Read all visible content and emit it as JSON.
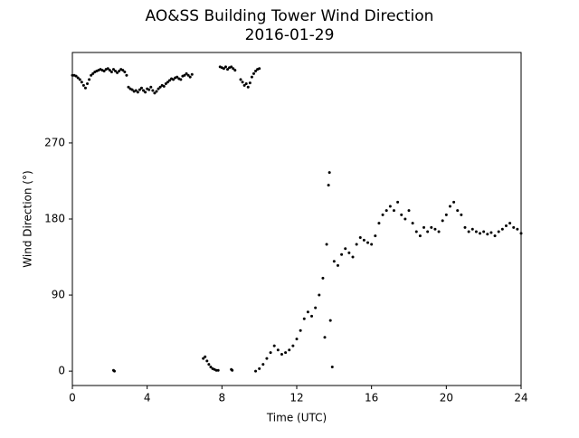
{
  "chart_data": {
    "type": "scatter",
    "title": "AO&SS Building Tower Wind Direction",
    "subtitle": "2016-01-29",
    "x_label": "Time (UTC)",
    "y_label": "Wind Direction (°)",
    "color": "#000000",
    "xlim": [
      0,
      24
    ],
    "ylim": [
      -17,
      377
    ],
    "xticks": [
      0,
      4,
      8,
      12,
      16,
      20,
      24
    ],
    "yticks": [
      0,
      90,
      180,
      270
    ],
    "x": [
      0.0,
      0.1,
      0.2,
      0.3,
      0.4,
      0.5,
      0.6,
      0.7,
      0.8,
      0.9,
      1.0,
      1.1,
      1.2,
      1.3,
      1.4,
      1.5,
      1.6,
      1.7,
      1.8,
      1.9,
      2.0,
      2.1,
      2.2,
      2.3,
      2.4,
      2.5,
      2.6,
      2.7,
      2.8,
      2.9,
      3.0,
      3.1,
      3.2,
      3.3,
      3.4,
      3.5,
      3.6,
      3.7,
      3.8,
      3.9,
      4.0,
      4.1,
      4.2,
      4.3,
      4.4,
      4.5,
      4.6,
      4.7,
      4.8,
      4.9,
      5.0,
      5.1,
      5.2,
      5.3,
      5.4,
      5.5,
      5.6,
      5.7,
      5.8,
      5.9,
      6.0,
      6.1,
      6.2,
      6.3,
      6.4,
      2.2,
      2.25,
      7.0,
      7.1,
      7.2,
      7.3,
      7.4,
      7.5,
      7.6,
      7.7,
      7.8,
      7.9,
      8.0,
      8.1,
      8.2,
      8.3,
      8.4,
      8.5,
      8.6,
      8.7,
      8.5,
      8.55,
      9.0,
      9.1,
      9.2,
      9.3,
      9.4,
      9.5,
      9.6,
      9.7,
      9.8,
      9.9,
      10.0,
      9.8,
      10.0,
      10.2,
      10.4,
      10.6,
      10.8,
      11.0,
      11.2,
      11.4,
      11.6,
      11.8,
      12.0,
      12.2,
      12.4,
      12.6,
      12.8,
      13.0,
      13.2,
      13.4,
      13.5,
      13.6,
      13.7,
      13.75,
      13.8,
      13.9,
      14.0,
      14.2,
      14.4,
      14.6,
      14.8,
      15.0,
      15.2,
      15.4,
      15.6,
      15.8,
      16.0,
      16.2,
      16.4,
      16.6,
      16.8,
      17.0,
      17.2,
      17.4,
      17.6,
      17.8,
      18.0,
      18.2,
      18.4,
      18.6,
      18.8,
      19.0,
      19.2,
      19.4,
      19.6,
      19.8,
      20.0,
      20.2,
      20.4,
      20.6,
      20.8,
      21.0,
      21.2,
      21.4,
      21.6,
      21.8,
      22.0,
      22.2,
      22.4,
      22.6,
      22.8,
      23.0,
      23.2,
      23.4,
      23.6,
      23.8,
      24.0
    ],
    "values": [
      350,
      350,
      349,
      347,
      345,
      342,
      338,
      335,
      340,
      345,
      350,
      352,
      354,
      355,
      356,
      357,
      356,
      355,
      357,
      358,
      356,
      354,
      357,
      355,
      353,
      355,
      357,
      356,
      354,
      350,
      336,
      334,
      333,
      331,
      332,
      330,
      333,
      335,
      332,
      330,
      334,
      333,
      336,
      332,
      329,
      331,
      334,
      336,
      338,
      337,
      340,
      342,
      344,
      346,
      345,
      347,
      348,
      346,
      345,
      349,
      350,
      352,
      350,
      348,
      351,
      1,
      0,
      15,
      17,
      12,
      8,
      5,
      3,
      2,
      1,
      1,
      360,
      359,
      358,
      360,
      357,
      359,
      360,
      358,
      356,
      2,
      1,
      345,
      342,
      338,
      340,
      336,
      341,
      348,
      352,
      355,
      357,
      358,
      0,
      3,
      8,
      15,
      22,
      30,
      25,
      20,
      22,
      25,
      30,
      38,
      48,
      62,
      70,
      65,
      75,
      90,
      110,
      40,
      150,
      220,
      235,
      60,
      5,
      130,
      125,
      138,
      145,
      140,
      135,
      150,
      158,
      155,
      152,
      150,
      160,
      175,
      185,
      190,
      195,
      190,
      200,
      185,
      180,
      190,
      175,
      165,
      160,
      170,
      165,
      170,
      168,
      165,
      178,
      185,
      195,
      200,
      190,
      185,
      170,
      165,
      168,
      165,
      163,
      165,
      162,
      164,
      160,
      165,
      168,
      172,
      175,
      170,
      168,
      163
    ]
  }
}
